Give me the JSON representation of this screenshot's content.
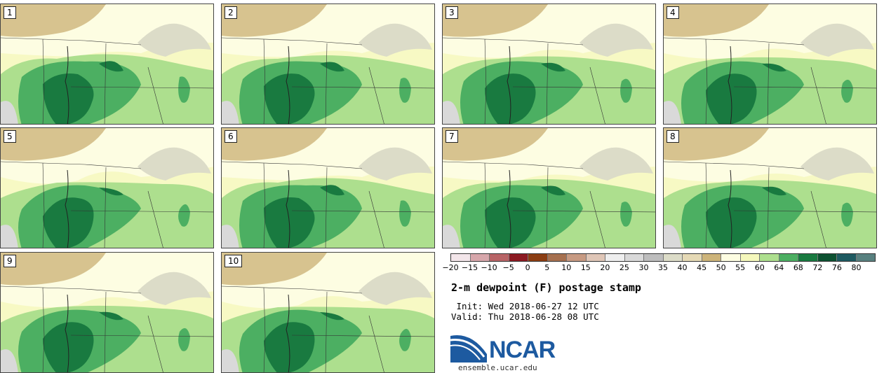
{
  "panels": [
    {
      "label": "1"
    },
    {
      "label": "2"
    },
    {
      "label": "3"
    },
    {
      "label": "4"
    },
    {
      "label": "5"
    },
    {
      "label": "6"
    },
    {
      "label": "7"
    },
    {
      "label": "8"
    },
    {
      "label": "9"
    },
    {
      "label": "10"
    }
  ],
  "colorbar": {
    "ticks": [
      "−20",
      "−15",
      "−10",
      "−5",
      "0",
      "5",
      "10",
      "15",
      "20",
      "25",
      "30",
      "35",
      "40",
      "45",
      "50",
      "55",
      "60",
      "64",
      "68",
      "72",
      "76",
      "80"
    ],
    "colors": [
      "#f3e6ea",
      "#d7a7ab",
      "#b86466",
      "#8c1a22",
      "#8b3d12",
      "#a6704f",
      "#c79a82",
      "#dfc6b7",
      "#eeeeee",
      "#d9d9d9",
      "#bdbdbd",
      "#dcdcc8",
      "#e5d9b5",
      "#cdb47a",
      "#fdfde2",
      "#f5f8bc",
      "#addf8e",
      "#4caf62",
      "#197a40",
      "#0d5131",
      "#1e5a61",
      "#58807f"
    ]
  },
  "title": "2-m dewpoint (F) postage stamp",
  "init": " Init: Wed 2018-06-27 12 UTC",
  "valid": "Valid: Thu 2018-06-28 08 UTC",
  "logo": {
    "text": "NCAR",
    "url": "ensemble.ucar.edu"
  }
}
